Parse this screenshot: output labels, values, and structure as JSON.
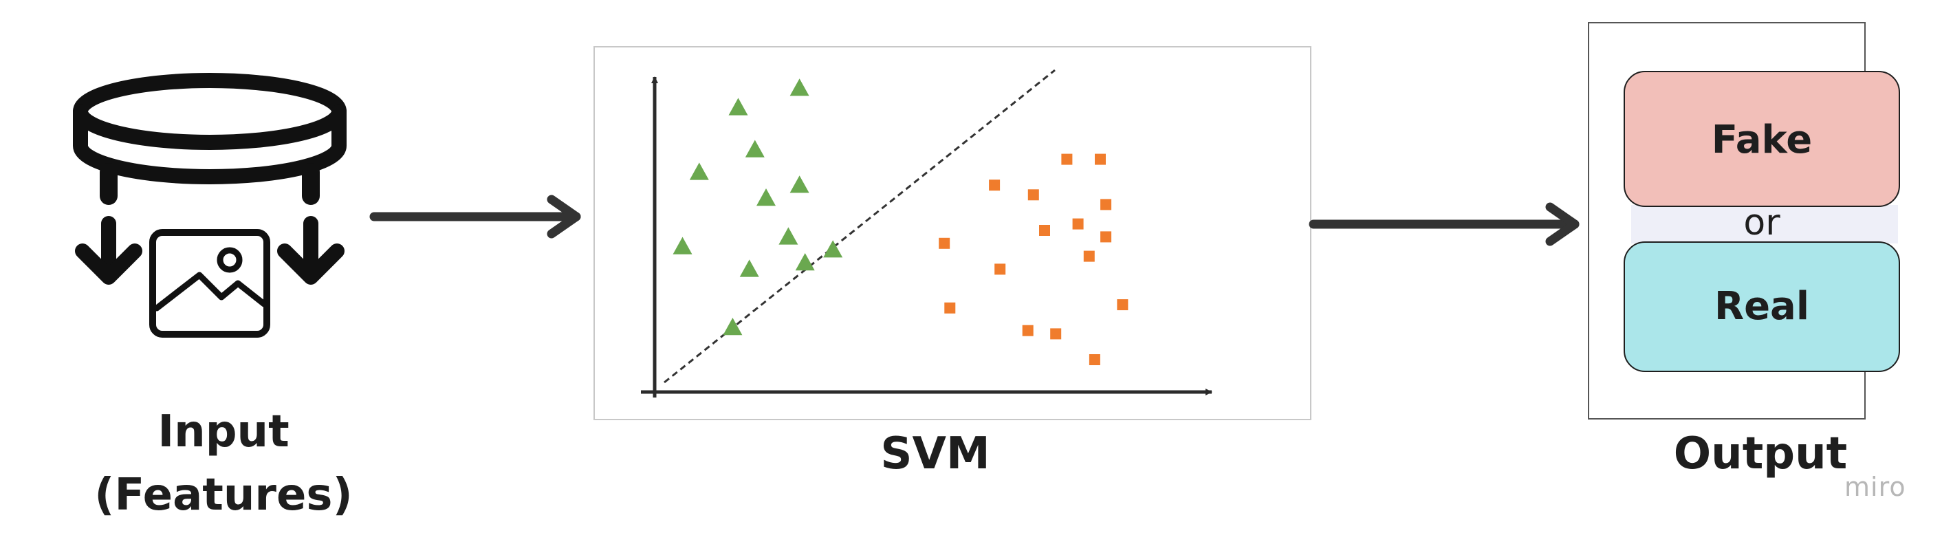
{
  "input": {
    "label_line1": "Input",
    "label_line2": "(Features)",
    "icon": "database-to-image-icon"
  },
  "svm": {
    "label": "SVM",
    "class_a": {
      "shape": "triangle",
      "color": "#6aa84f",
      "points": [
        [
          0.15,
          0.88
        ],
        [
          0.26,
          0.94
        ],
        [
          0.18,
          0.75
        ],
        [
          0.2,
          0.6
        ],
        [
          0.08,
          0.68
        ],
        [
          0.05,
          0.45
        ],
        [
          0.17,
          0.38
        ],
        [
          0.14,
          0.2
        ],
        [
          0.27,
          0.4
        ],
        [
          0.26,
          0.64
        ],
        [
          0.32,
          0.44
        ],
        [
          0.24,
          0.48
        ]
      ]
    },
    "class_b": {
      "shape": "square",
      "color": "#f07c2c",
      "points": [
        [
          0.61,
          0.64
        ],
        [
          0.74,
          0.72
        ],
        [
          0.68,
          0.61
        ],
        [
          0.81,
          0.58
        ],
        [
          0.76,
          0.52
        ],
        [
          0.8,
          0.72
        ],
        [
          0.52,
          0.46
        ],
        [
          0.53,
          0.26
        ],
        [
          0.62,
          0.38
        ],
        [
          0.78,
          0.42
        ],
        [
          0.79,
          0.1
        ],
        [
          0.72,
          0.18
        ],
        [
          0.67,
          0.19
        ],
        [
          0.81,
          0.48
        ],
        [
          0.84,
          0.27
        ],
        [
          0.7,
          0.5
        ]
      ]
    },
    "boundary": "dashed"
  },
  "output": {
    "label": "Output",
    "fake_label": "Fake",
    "or_label": "or",
    "real_label": "Real",
    "fake_color": "#f2bfb9",
    "real_color": "#abe6ea",
    "or_band_color": "#eeeff8"
  },
  "watermark": "miro"
}
